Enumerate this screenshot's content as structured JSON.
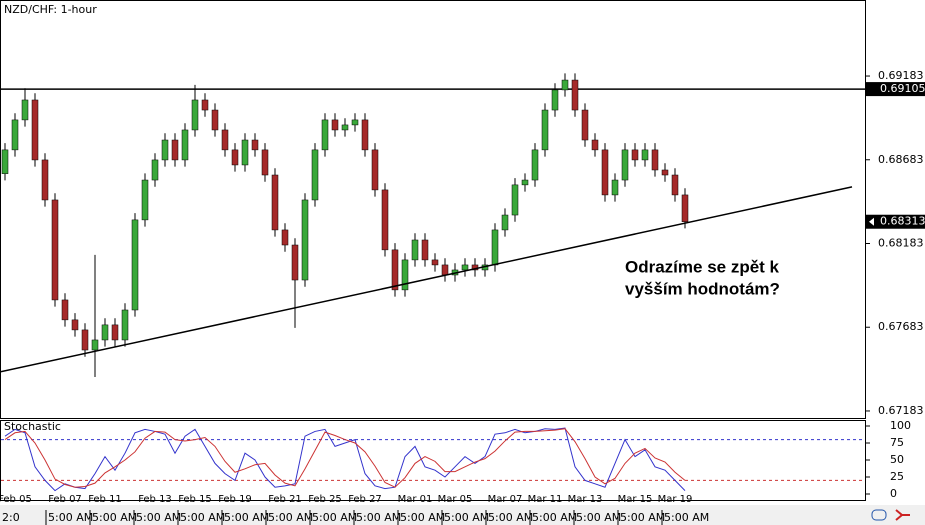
{
  "chart_data": [
    {
      "type": "candlestick",
      "title": "NZD/CHF: 1-hour",
      "categories": [
        null,
        "Feb 05",
        null,
        null,
        null,
        null,
        "Feb 07",
        null,
        null,
        null,
        "Feb 11",
        null,
        null,
        null,
        null,
        "Feb 13",
        null,
        null,
        null,
        "Feb 15",
        null,
        null,
        null,
        "Feb 19",
        null,
        null,
        null,
        null,
        "Feb 21",
        null,
        null,
        null,
        "Feb 25",
        null,
        null,
        null,
        "Feb 27",
        null,
        null,
        null,
        null,
        "Mar 01",
        null,
        null,
        null,
        "Mar 05",
        null,
        null,
        null,
        null,
        "Mar 07",
        null,
        null,
        null,
        "Mar 11",
        null,
        null,
        null,
        "Mar 13",
        null,
        null,
        null,
        null,
        "Mar 15",
        null,
        null,
        null,
        "Mar 19",
        null
      ],
      "open": [
        0.686,
        0.68742,
        0.68921,
        0.6904,
        0.68682,
        0.68443,
        0.67846,
        0.67727,
        0.67667,
        0.67547,
        0.67607,
        0.67697,
        0.67607,
        0.67786,
        0.68324,
        0.68562,
        0.68682,
        0.68801,
        0.68682,
        0.68861,
        0.6904,
        0.6898,
        0.68861,
        0.68742,
        0.68652,
        0.68801,
        0.68742,
        0.68592,
        0.68264,
        0.68174,
        0.67965,
        0.68443,
        0.68742,
        0.68921,
        0.68861,
        0.68891,
        0.68921,
        0.68742,
        0.68503,
        0.68145,
        0.67906,
        0.68085,
        0.68204,
        0.68085,
        0.68055,
        0.67995,
        0.68025,
        0.68055,
        0.68025,
        0.68055,
        0.68264,
        0.68353,
        0.68533,
        0.68562,
        0.68742,
        0.6898,
        0.691,
        0.69159,
        0.6898,
        0.68801,
        0.68742,
        0.68473,
        0.68562,
        0.68742,
        0.68682,
        0.68742,
        0.68622,
        0.68592,
        0.68473
      ],
      "high": [
        0.68782,
        0.68961,
        0.6911,
        0.6908,
        0.68722,
        0.68483,
        0.67886,
        0.67767,
        0.67707,
        0.68115,
        0.67737,
        0.67737,
        0.67826,
        0.68364,
        0.68602,
        0.68722,
        0.68841,
        0.68841,
        0.68901,
        0.6913,
        0.6908,
        0.6902,
        0.68901,
        0.68782,
        0.68841,
        0.68841,
        0.68782,
        0.68632,
        0.68304,
        0.68214,
        0.68483,
        0.68782,
        0.68961,
        0.68961,
        0.68931,
        0.68961,
        0.68961,
        0.68782,
        0.68543,
        0.68185,
        0.68125,
        0.68244,
        0.68244,
        0.68125,
        0.68095,
        0.68065,
        0.68095,
        0.68095,
        0.68095,
        0.68304,
        0.68393,
        0.68573,
        0.68602,
        0.68782,
        0.6902,
        0.6914,
        0.69199,
        0.69199,
        0.6902,
        0.68841,
        0.68782,
        0.68602,
        0.68782,
        0.68782,
        0.68782,
        0.68782,
        0.68662,
        0.68632,
        0.68513
      ],
      "low": [
        0.6856,
        0.68702,
        0.68881,
        0.68642,
        0.68403,
        0.67806,
        0.67687,
        0.67627,
        0.67507,
        0.67386,
        0.67567,
        0.67567,
        0.67567,
        0.67746,
        0.68284,
        0.68522,
        0.68642,
        0.68642,
        0.68642,
        0.68821,
        0.6894,
        0.68821,
        0.68702,
        0.68612,
        0.68612,
        0.68702,
        0.68552,
        0.68224,
        0.68134,
        0.67679,
        0.67925,
        0.68403,
        0.68702,
        0.68821,
        0.68821,
        0.68851,
        0.68702,
        0.68463,
        0.68105,
        0.67866,
        0.67866,
        0.68045,
        0.68045,
        0.68015,
        0.67955,
        0.67955,
        0.67985,
        0.67985,
        0.67985,
        0.68015,
        0.68224,
        0.68313,
        0.68493,
        0.68522,
        0.68702,
        0.6894,
        0.6906,
        0.6894,
        0.68761,
        0.68702,
        0.68433,
        0.68433,
        0.68522,
        0.68642,
        0.68642,
        0.68582,
        0.68552,
        0.68433,
        0.68273
      ],
      "close": [
        0.68742,
        0.68921,
        0.6904,
        0.68682,
        0.68443,
        0.67846,
        0.67727,
        0.67667,
        0.67547,
        0.67607,
        0.67697,
        0.67607,
        0.67786,
        0.68324,
        0.68562,
        0.68682,
        0.68801,
        0.68682,
        0.68861,
        0.6904,
        0.6898,
        0.68861,
        0.68742,
        0.68652,
        0.68801,
        0.68742,
        0.68592,
        0.68264,
        0.68174,
        0.67965,
        0.68443,
        0.68742,
        0.68921,
        0.68861,
        0.68891,
        0.68921,
        0.68742,
        0.68503,
        0.68145,
        0.67906,
        0.68085,
        0.68204,
        0.68085,
        0.68055,
        0.67995,
        0.68025,
        0.68055,
        0.68025,
        0.68055,
        0.68264,
        0.68353,
        0.68533,
        0.68562,
        0.68742,
        0.6898,
        0.691,
        0.69159,
        0.6898,
        0.68801,
        0.68742,
        0.68473,
        0.68562,
        0.68742,
        0.68682,
        0.68742,
        0.68622,
        0.68592,
        0.68473,
        0.68313
      ],
      "up_color": "#3aa83a",
      "down_color": "#a52a2a",
      "ylim": [
        0.67141,
        0.69637
      ],
      "yticks": [
        0.69183,
        0.68683,
        0.68183,
        0.67683,
        0.67183
      ],
      "resistance": 0.69105,
      "last_price": 0.68313,
      "trendline": {
        "x": [
          -0.5,
          84.7
        ],
        "y": [
          0.67416,
          0.68521
        ]
      },
      "annotation": [
        "Odrazíme se zpět k",
        "vyšším hodnotám?"
      ]
    },
    {
      "type": "line",
      "title": "Stochastic",
      "series": [
        {
          "color": "#3333cc",
          "values": [
            85,
            95,
            90,
            40,
            20,
            5,
            15,
            10,
            8,
            30,
            55,
            35,
            60,
            90,
            95,
            92,
            88,
            60,
            85,
            95,
            70,
            45,
            30,
            20,
            60,
            50,
            25,
            10,
            12,
            15,
            85,
            92,
            95,
            70,
            75,
            80,
            30,
            12,
            8,
            10,
            55,
            70,
            40,
            35,
            25,
            40,
            55,
            45,
            55,
            88,
            90,
            95,
            90,
            92,
            96,
            95,
            97,
            40,
            20,
            15,
            10,
            45,
            80,
            55,
            65,
            40,
            35,
            20,
            5
          ]
        },
        {
          "color": "#cc3333",
          "values": [
            80,
            90,
            92,
            75,
            50,
            22,
            14,
            10,
            11,
            16,
            31,
            40,
            50,
            62,
            82,
            92,
            91,
            80,
            78,
            80,
            83,
            70,
            48,
            32,
            37,
            43,
            45,
            28,
            16,
            12,
            37,
            64,
            91,
            86,
            80,
            75,
            62,
            41,
            17,
            10,
            24,
            45,
            55,
            48,
            33,
            33,
            40,
            47,
            52,
            63,
            78,
            91,
            92,
            92,
            93,
            94,
            96,
            77,
            52,
            25,
            15,
            23,
            45,
            60,
            67,
            53,
            47,
            32,
            20
          ]
        }
      ],
      "ylim": [
        -8.8,
        108.8
      ],
      "yticks": [
        100,
        75,
        50,
        25,
        0
      ],
      "levels": [
        {
          "value": 80,
          "color": "#3333cc"
        },
        {
          "value": 20,
          "color": "#cc3333"
        }
      ]
    }
  ],
  "time_strip": [
    "2:0",
    "5:00 AM",
    "5:00 AM",
    "5:00 AM",
    "5:00 AM",
    "5:00 AM",
    "5:00 AM",
    "5:00 AM",
    "5:00 AM",
    "5:00 AM",
    "5:00 AM",
    "5:00 AM",
    "5:00 AM",
    "5:00 AM",
    "5:00 AM",
    "5:00 AM"
  ]
}
